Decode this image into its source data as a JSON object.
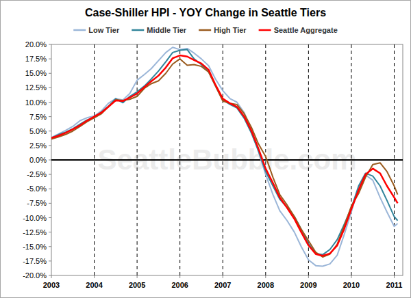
{
  "chart_data": {
    "type": "line",
    "title": "Case-Shiller HPI - YOY Change in Seattle Tiers",
    "annotations": [
      "SeattleBubble.com"
    ],
    "legend": "top",
    "grid": true,
    "x": [
      2003,
      2003.17,
      2003.33,
      2003.5,
      2003.67,
      2003.83,
      2004,
      2004.17,
      2004.33,
      2004.5,
      2004.67,
      2004.83,
      2005,
      2005.17,
      2005.33,
      2005.5,
      2005.67,
      2005.83,
      2006,
      2006.17,
      2006.33,
      2006.5,
      2006.67,
      2006.83,
      2007,
      2007.17,
      2007.33,
      2007.5,
      2007.67,
      2007.83,
      2008,
      2008.17,
      2008.33,
      2008.5,
      2008.67,
      2008.83,
      2009,
      2009.17,
      2009.33,
      2009.5,
      2009.67,
      2009.83,
      2010,
      2010.17,
      2010.33,
      2010.5,
      2010.67,
      2010.83,
      2011,
      2011.08
    ],
    "xlim": [
      2003,
      2011.2
    ],
    "xticks": [
      2003,
      2004,
      2005,
      2006,
      2007,
      2008,
      2009,
      2010,
      2011
    ],
    "ylim": [
      -20,
      20
    ],
    "yticks": [
      {
        "value": -20,
        "label": "-20.0%"
      },
      {
        "value": -17.5,
        "label": "-17.5%"
      },
      {
        "value": -15,
        "label": "-15.0%"
      },
      {
        "value": -12.5,
        "label": "-12.5%"
      },
      {
        "value": -10,
        "label": "-10.0%"
      },
      {
        "value": -7.5,
        "label": "-7.5%"
      },
      {
        "value": -5,
        "label": "-5.0%"
      },
      {
        "value": -2.5,
        "label": "-2.5%"
      },
      {
        "value": 0,
        "label": "0.0%"
      },
      {
        "value": 2.5,
        "label": "2.5%"
      },
      {
        "value": 5,
        "label": "5.0%"
      },
      {
        "value": 7.5,
        "label": "7.5%"
      },
      {
        "value": 10,
        "label": "10.0%"
      },
      {
        "value": 12.5,
        "label": "12.5%"
      },
      {
        "value": 15,
        "label": "15.0%"
      },
      {
        "value": 17.5,
        "label": "17.5%"
      },
      {
        "value": 20,
        "label": "20.0%"
      }
    ],
    "series": [
      {
        "name": "Low Tier",
        "color": "#9bb6d8",
        "values": [
          3.9,
          4.5,
          5.1,
          5.8,
          6.8,
          7.3,
          7.6,
          8.5,
          9.8,
          10.6,
          10.4,
          11.5,
          13.8,
          14.8,
          15.8,
          17.2,
          18.6,
          19.5,
          19.1,
          19.3,
          18.5,
          17.5,
          16.3,
          14.0,
          12.0,
          10.6,
          10.0,
          8.2,
          5.0,
          1.5,
          -2.5,
          -6.0,
          -8.8,
          -10.5,
          -12.5,
          -15.0,
          -17.3,
          -18.3,
          -18.4,
          -18.0,
          -16.5,
          -13.0,
          -9.0,
          -4.8,
          -2.6,
          -3.5,
          -6.5,
          -9.0,
          -11.5,
          -11.0
        ]
      },
      {
        "name": "Middle Tier",
        "color": "#31849b",
        "values": [
          3.8,
          4.4,
          4.8,
          5.4,
          6.2,
          6.9,
          7.4,
          8.3,
          9.3,
          10.6,
          9.9,
          11.0,
          11.8,
          12.8,
          14.0,
          15.4,
          17.0,
          18.6,
          19.0,
          19.1,
          17.5,
          16.5,
          15.3,
          12.8,
          10.4,
          9.6,
          9.0,
          7.2,
          4.6,
          1.6,
          -2.0,
          -4.5,
          -6.8,
          -8.2,
          -9.8,
          -12.0,
          -14.5,
          -16.2,
          -16.4,
          -15.5,
          -13.8,
          -11.2,
          -8.3,
          -4.5,
          -2.3,
          -2.8,
          -4.5,
          -7.0,
          -9.8,
          -10.5
        ]
      },
      {
        "name": "High Tier",
        "color": "#9a5b1e",
        "values": [
          3.6,
          4.0,
          4.4,
          5.0,
          5.8,
          6.6,
          7.3,
          8.0,
          9.2,
          10.4,
          10.3,
          10.5,
          11.0,
          12.4,
          13.2,
          13.7,
          15.0,
          16.6,
          17.5,
          16.4,
          16.5,
          16.2,
          15.2,
          12.8,
          10.2,
          9.8,
          9.6,
          8.0,
          5.6,
          2.8,
          0.6,
          -3.0,
          -6.0,
          -7.8,
          -9.8,
          -12.0,
          -14.0,
          -16.0,
          -16.8,
          -16.3,
          -14.6,
          -11.5,
          -8.0,
          -5.8,
          -3.0,
          -0.8,
          -0.5,
          -2.0,
          -4.5,
          -6.0
        ]
      },
      {
        "name": "Seattle Aggregate",
        "color": "#ff0000",
        "values": [
          3.8,
          4.2,
          4.7,
          5.3,
          6.0,
          6.8,
          7.5,
          8.2,
          9.2,
          10.3,
          10.2,
          10.8,
          11.5,
          12.6,
          13.6,
          14.6,
          16.0,
          17.6,
          18.1,
          17.9,
          17.3,
          16.7,
          15.6,
          13.0,
          10.6,
          9.8,
          9.2,
          7.5,
          5.0,
          2.0,
          -1.5,
          -4.0,
          -6.5,
          -8.3,
          -10.2,
          -12.5,
          -14.8,
          -16.3,
          -16.6,
          -16.2,
          -14.8,
          -12.0,
          -8.5,
          -5.2,
          -2.5,
          -1.5,
          -2.3,
          -4.5,
          -6.5,
          -7.5
        ]
      }
    ]
  }
}
